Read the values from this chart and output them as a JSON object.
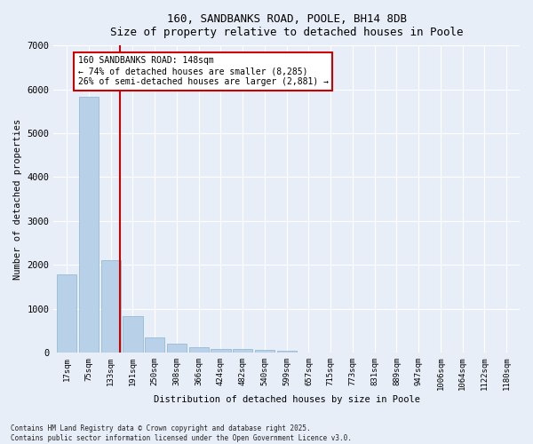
{
  "title_line1": "160, SANDBANKS ROAD, POOLE, BH14 8DB",
  "title_line2": "Size of property relative to detached houses in Poole",
  "xlabel": "Distribution of detached houses by size in Poole",
  "ylabel": "Number of detached properties",
  "categories": [
    "17sqm",
    "75sqm",
    "133sqm",
    "191sqm",
    "250sqm",
    "308sqm",
    "366sqm",
    "424sqm",
    "482sqm",
    "540sqm",
    "599sqm",
    "657sqm",
    "715sqm",
    "773sqm",
    "831sqm",
    "889sqm",
    "947sqm",
    "1006sqm",
    "1064sqm",
    "1122sqm",
    "1180sqm"
  ],
  "values": [
    1790,
    5820,
    2100,
    830,
    340,
    200,
    130,
    90,
    70,
    55,
    40,
    0,
    0,
    0,
    0,
    0,
    0,
    0,
    0,
    0,
    0
  ],
  "bar_color": "#b8d0e8",
  "bar_edge_color": "#8ab4d0",
  "vline_color": "#cc0000",
  "annotation_text": "160 SANDBANKS ROAD: 148sqm\n← 74% of detached houses are smaller (8,285)\n26% of semi-detached houses are larger (2,881) →",
  "annotation_box_color": "#cc0000",
  "annotation_bg": "#ffffff",
  "ylim": [
    0,
    7000
  ],
  "yticks": [
    0,
    1000,
    2000,
    3000,
    4000,
    5000,
    6000,
    7000
  ],
  "background_color": "#e8eef8",
  "grid_color": "#ffffff",
  "footer_line1": "Contains HM Land Registry data © Crown copyright and database right 2025.",
  "footer_line2": "Contains public sector information licensed under the Open Government Licence v3.0."
}
